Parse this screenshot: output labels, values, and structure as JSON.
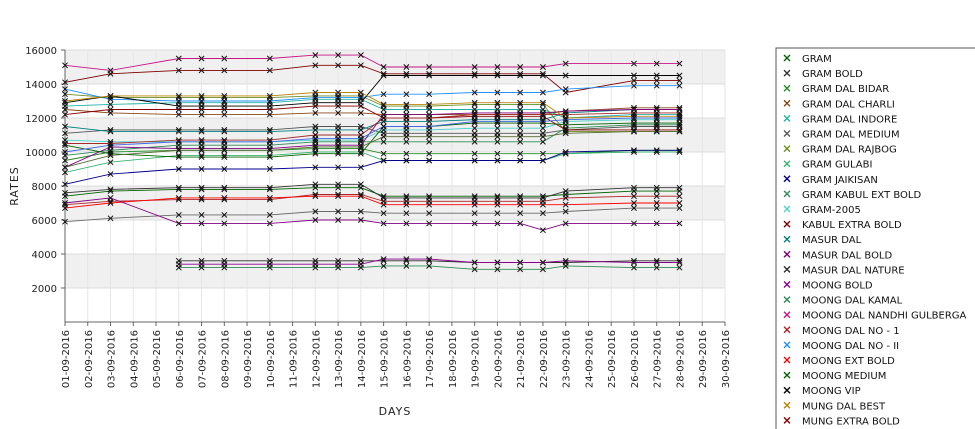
{
  "chart_data": {
    "type": "line",
    "title": "",
    "xlabel": "DAYS",
    "ylabel": "RATES",
    "ylim": [
      0,
      16000
    ],
    "yticks": [
      2000,
      4000,
      6000,
      8000,
      10000,
      12000,
      14000,
      16000
    ],
    "grid": true,
    "legend_position": "right",
    "categories": [
      "01-09-2016",
      "02-09-2016",
      "03-09-2016",
      "04-09-2016",
      "05-09-2016",
      "06-09-2016",
      "07-09-2016",
      "08-09-2016",
      "09-09-2016",
      "10-09-2016",
      "11-09-2016",
      "12-09-2016",
      "13-09-2016",
      "14-09-2016",
      "15-09-2016",
      "16-09-2016",
      "17-09-2016",
      "18-09-2016",
      "19-09-2016",
      "20-09-2016",
      "21-09-2016",
      "22-09-2016",
      "23-09-2016",
      "24-09-2016",
      "25-09-2016",
      "26-09-2016",
      "27-09-2016",
      "28-09-2016",
      "29-09-2016",
      "30-09-2016"
    ],
    "series": [
      {
        "name": "GRAM",
        "color": "#006400",
        "values": [
          7400,
          null,
          7700,
          null,
          null,
          7800,
          7800,
          7800,
          null,
          7800,
          null,
          7900,
          7900,
          7900,
          7400,
          7400,
          7400,
          null,
          7400,
          7400,
          7400,
          7400,
          7500,
          null,
          null,
          7700,
          7700,
          7700,
          null,
          null
        ]
      },
      {
        "name": "GRAM BOLD",
        "color": "#333333",
        "values": [
          7600,
          null,
          7800,
          null,
          null,
          7900,
          7900,
          7900,
          null,
          7900,
          null,
          8100,
          8100,
          8100,
          7300,
          7300,
          7300,
          null,
          7300,
          7300,
          7300,
          7300,
          7700,
          null,
          null,
          7900,
          7900,
          7900,
          null,
          null
        ]
      },
      {
        "name": "GRAM DAL BIDAR",
        "color": "#228B22",
        "values": [
          9500,
          null,
          10000,
          null,
          null,
          10100,
          10100,
          10100,
          null,
          10100,
          null,
          10200,
          10200,
          10200,
          9900,
          9900,
          9900,
          null,
          9900,
          9900,
          9900,
          9900,
          9900,
          null,
          null,
          10100,
          10100,
          10100,
          null,
          null
        ]
      },
      {
        "name": "GRAM DAL CHARLI",
        "color": "#8B4513",
        "values": [
          12500,
          null,
          12300,
          null,
          null,
          12200,
          12200,
          12200,
          null,
          12200,
          null,
          12300,
          12300,
          12300,
          12200,
          12200,
          12200,
          null,
          12200,
          12200,
          12200,
          12200,
          12400,
          null,
          null,
          12600,
          12600,
          12600,
          null,
          null
        ]
      },
      {
        "name": "GRAM DAL INDORE",
        "color": "#20B2AA",
        "values": [
          12700,
          null,
          12800,
          null,
          null,
          12900,
          12900,
          12900,
          null,
          12900,
          null,
          13100,
          13100,
          13100,
          12500,
          12500,
          12500,
          null,
          12500,
          12500,
          12500,
          12500,
          12000,
          null,
          null,
          12200,
          12200,
          12200,
          null,
          null
        ]
      },
      {
        "name": "GRAM DAL MEDIUM",
        "color": "#555555",
        "values": [
          11100,
          null,
          11300,
          null,
          null,
          11300,
          11300,
          11300,
          null,
          11300,
          null,
          11500,
          11500,
          11500,
          11100,
          11100,
          11100,
          null,
          11100,
          11100,
          11100,
          11100,
          11300,
          null,
          null,
          11500,
          11500,
          11500,
          null,
          null
        ]
      },
      {
        "name": "GRAM DAL RAJBOG",
        "color": "#6B8E23",
        "values": [
          13400,
          null,
          13200,
          null,
          null,
          13200,
          13200,
          13200,
          null,
          13200,
          null,
          13300,
          13300,
          13300,
          12700,
          12700,
          12700,
          null,
          12800,
          12800,
          12800,
          12800,
          11200,
          null,
          null,
          11200,
          11200,
          11200,
          null,
          null
        ]
      },
      {
        "name": "GRAM GULABI",
        "color": "#3CB371",
        "values": [
          8800,
          null,
          9400,
          null,
          null,
          9800,
          9800,
          9800,
          null,
          9800,
          null,
          10000,
          10000,
          10000,
          9500,
          9500,
          9500,
          null,
          9500,
          9500,
          9500,
          9500,
          9900,
          null,
          null,
          10000,
          10000,
          10000,
          null,
          null
        ]
      },
      {
        "name": "GRAM JAIKISAN",
        "color": "#00008B",
        "values": [
          8100,
          null,
          8700,
          null,
          null,
          9000,
          9000,
          9000,
          null,
          9000,
          null,
          9100,
          9100,
          9100,
          9500,
          9500,
          9500,
          null,
          9500,
          9500,
          9500,
          9500,
          10000,
          null,
          null,
          10100,
          10100,
          10100,
          null,
          null
        ]
      },
      {
        "name": "GRAM KABUL EXT BOLD",
        "color": "#2E8B57",
        "values": [
          9800,
          null,
          10100,
          null,
          null,
          10400,
          10400,
          10400,
          null,
          10400,
          null,
          10600,
          10600,
          10600,
          10600,
          10600,
          10600,
          null,
          10600,
          10600,
          10600,
          10600,
          11400,
          null,
          null,
          11600,
          11600,
          11600,
          null,
          null
        ]
      },
      {
        "name": "GRAM-2005",
        "color": "#48D1CC",
        "values": [
          10700,
          null,
          10600,
          null,
          null,
          10600,
          10600,
          10600,
          null,
          10600,
          null,
          10700,
          10700,
          10700,
          11300,
          11300,
          11300,
          null,
          11400,
          11400,
          11400,
          11400,
          11800,
          null,
          null,
          11900,
          11900,
          11900,
          null,
          null
        ]
      },
      {
        "name": "KABUL EXTRA BOLD",
        "color": "#800000",
        "values": [
          14100,
          null,
          14600,
          null,
          null,
          14800,
          14800,
          14800,
          null,
          14800,
          null,
          15100,
          15100,
          15100,
          14600,
          14600,
          14600,
          null,
          14600,
          14600,
          14600,
          14600,
          13500,
          null,
          null,
          14200,
          14200,
          14200,
          null,
          null
        ]
      },
      {
        "name": "MASUR DAL",
        "color": "#008080",
        "values": [
          11500,
          null,
          11200,
          null,
          null,
          11200,
          11200,
          11200,
          null,
          11200,
          null,
          11300,
          11300,
          11300,
          11800,
          11800,
          11800,
          null,
          11900,
          11900,
          11900,
          11900,
          12300,
          null,
          null,
          12500,
          12500,
          12500,
          null,
          null
        ]
      },
      {
        "name": "MASUR DAL BOLD",
        "color": "#800080",
        "values": [
          9100,
          null,
          10300,
          null,
          null,
          10200,
          10200,
          10200,
          null,
          10200,
          null,
          10400,
          10400,
          10400,
          12200,
          12200,
          12200,
          null,
          12300,
          12300,
          12300,
          12300,
          12400,
          null,
          null,
          12500,
          12500,
          12500,
          null,
          null
        ]
      },
      {
        "name": "MASUR DAL NATURE",
        "color": "#2F2F2F",
        "values": [
          null,
          null,
          null,
          null,
          null,
          3600,
          3600,
          3600,
          null,
          3600,
          null,
          3600,
          3600,
          3600,
          3600,
          3600,
          3600,
          null,
          3500,
          3500,
          3500,
          3500,
          3500,
          null,
          null,
          3600,
          3600,
          3600,
          null,
          null
        ]
      },
      {
        "name": "MOONG BOLD",
        "color": "#8B008B",
        "values": [
          null,
          null,
          null,
          null,
          null,
          3400,
          3400,
          3400,
          null,
          3400,
          null,
          3400,
          3400,
          3400,
          3700,
          3700,
          3700,
          null,
          3500,
          3500,
          3500,
          3500,
          3600,
          null,
          null,
          3500,
          3500,
          3500,
          null,
          null
        ]
      },
      {
        "name": "MOONG DAL KAMAL",
        "color": "#2E8B57",
        "values": [
          null,
          null,
          null,
          null,
          null,
          3200,
          3200,
          3200,
          null,
          3200,
          null,
          3200,
          3200,
          3200,
          3300,
          3300,
          3300,
          null,
          3100,
          3100,
          3100,
          3100,
          3300,
          null,
          null,
          3200,
          3200,
          3200,
          null,
          null
        ]
      },
      {
        "name": "MOONG DAL NANDHI GULBERGA",
        "color": "#C71585",
        "values": [
          15100,
          null,
          14800,
          null,
          null,
          15500,
          15500,
          15500,
          null,
          15500,
          null,
          15700,
          15700,
          15700,
          15000,
          15000,
          15000,
          null,
          15000,
          15000,
          15000,
          15000,
          15200,
          null,
          null,
          15200,
          15200,
          15200,
          null,
          null
        ]
      },
      {
        "name": "MOONG DAL NO - 1",
        "color": "#B22222",
        "values": [
          6900,
          null,
          7100,
          null,
          null,
          7200,
          7200,
          7200,
          null,
          7200,
          null,
          7500,
          7500,
          7500,
          7100,
          7100,
          7100,
          null,
          7100,
          7100,
          7100,
          7100,
          7300,
          null,
          null,
          7400,
          7400,
          7400,
          null,
          null
        ]
      },
      {
        "name": "MOONG DAL NO - II",
        "color": "#1E90FF",
        "values": [
          13700,
          null,
          13100,
          null,
          null,
          13000,
          13000,
          13000,
          null,
          13000,
          null,
          13200,
          13200,
          13200,
          13400,
          13400,
          13400,
          null,
          13500,
          13500,
          13500,
          13500,
          13700,
          null,
          null,
          13900,
          13900,
          13900,
          null,
          null
        ]
      },
      {
        "name": "MOONG EXT BOLD",
        "color": "#FF0000",
        "values": [
          6700,
          null,
          7000,
          null,
          null,
          7300,
          7300,
          7300,
          null,
          7300,
          null,
          7400,
          7400,
          7400,
          6900,
          6900,
          6900,
          null,
          6900,
          6900,
          6900,
          6900,
          6900,
          null,
          null,
          7000,
          7000,
          7000,
          null,
          null
        ]
      },
      {
        "name": "MOONG MEDIUM",
        "color": "#006400",
        "values": [
          10400,
          null,
          9900,
          null,
          null,
          9700,
          9700,
          9700,
          null,
          9700,
          null,
          9900,
          9900,
          9900,
          11500,
          11500,
          11500,
          null,
          11700,
          11700,
          11700,
          11700,
          11600,
          null,
          null,
          11700,
          11700,
          11700,
          null,
          null
        ]
      },
      {
        "name": "MOONG VIP",
        "color": "#000000",
        "values": [
          12900,
          null,
          13300,
          null,
          null,
          12700,
          12700,
          12700,
          null,
          12700,
          null,
          12900,
          12900,
          12900,
          14500,
          14500,
          14500,
          null,
          14500,
          14500,
          14500,
          14500,
          14500,
          null,
          null,
          14500,
          14500,
          14500,
          null,
          null
        ]
      },
      {
        "name": "MUNG DAL BEST",
        "color": "#B8860B",
        "values": [
          13000,
          null,
          13300,
          null,
          null,
          13300,
          13300,
          13300,
          null,
          13300,
          null,
          13500,
          13500,
          13500,
          12800,
          12800,
          12800,
          null,
          12900,
          12900,
          12900,
          12900,
          12000,
          null,
          null,
          12100,
          12100,
          12100,
          null,
          null
        ]
      },
      {
        "name": "MUNG EXTRA BOLD",
        "color": "#8B0000",
        "values": [
          12200,
          null,
          12500,
          null,
          null,
          12500,
          12500,
          12500,
          null,
          12500,
          null,
          12700,
          12700,
          12700,
          12000,
          12000,
          12000,
          null,
          12100,
          12100,
          12100,
          12100,
          11300,
          null,
          null,
          11300,
          11300,
          11300,
          null,
          null
        ]
      },
      {
        "name": "",
        "color": "#696969",
        "values": [
          5900,
          null,
          6100,
          null,
          null,
          6300,
          6300,
          6300,
          null,
          6300,
          null,
          6500,
          6500,
          6500,
          6400,
          6400,
          6400,
          null,
          6400,
          6400,
          6400,
          6400,
          6500,
          null,
          null,
          6700,
          6700,
          6700,
          null,
          null
        ]
      },
      {
        "name": "",
        "color": "#800080",
        "values": [
          7000,
          null,
          7300,
          null,
          null,
          5800,
          5800,
          5800,
          null,
          5800,
          null,
          6000,
          6000,
          6000,
          5800,
          5800,
          5800,
          null,
          5800,
          5800,
          5800,
          5400,
          5800,
          null,
          null,
          5800,
          5800,
          5800,
          null,
          null
        ]
      },
      {
        "name": "",
        "color": "#556B2F",
        "values": [
          9100,
          null,
          9800,
          null,
          null,
          10100,
          10100,
          10100,
          null,
          10100,
          null,
          10300,
          10300,
          10300,
          10900,
          10900,
          10900,
          null,
          10900,
          10900,
          10900,
          10900,
          11100,
          null,
          null,
          11200,
          11200,
          11200,
          null,
          null
        ]
      },
      {
        "name": "",
        "color": "#4169E1",
        "values": [
          10000,
          null,
          10400,
          null,
          null,
          10600,
          10600,
          10600,
          null,
          10600,
          null,
          10800,
          10800,
          10800,
          11500,
          11500,
          11500,
          null,
          11800,
          11800,
          11800,
          11800,
          11900,
          null,
          null,
          12000,
          12000,
          12000,
          null,
          null
        ]
      },
      {
        "name": "",
        "color": "#A52A2A",
        "values": [
          10500,
          null,
          10500,
          null,
          null,
          10700,
          10700,
          10700,
          null,
          10700,
          null,
          11000,
          11000,
          11000,
          12000,
          12000,
          12000,
          null,
          12200,
          12200,
          12200,
          12200,
          12200,
          null,
          null,
          12300,
          12300,
          12300,
          null,
          null
        ]
      }
    ]
  }
}
